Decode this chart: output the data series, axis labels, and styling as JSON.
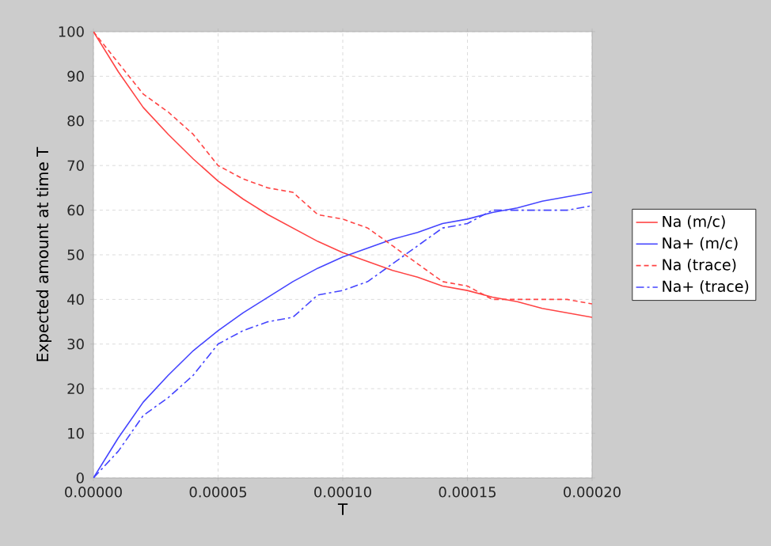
{
  "chart_data": {
    "type": "line",
    "xlabel": "T",
    "ylabel": "Expected amount at time T",
    "x": [
      0,
      1e-05,
      2e-05,
      3e-05,
      4e-05,
      5e-05,
      6e-05,
      7e-05,
      8e-05,
      9e-05,
      0.0001,
      0.00011,
      0.00012,
      0.00013,
      0.00014,
      0.00015,
      0.00016,
      0.00017,
      0.00018,
      0.00019,
      0.0002
    ],
    "series": [
      {
        "name": "Na (m/c)",
        "color": "#ff4444",
        "line_style": "solid",
        "values": [
          100,
          91,
          83,
          77,
          71.5,
          66.5,
          62.5,
          59,
          56,
          53,
          50.5,
          48.5,
          46.5,
          45,
          43,
          42,
          40.5,
          39.5,
          38,
          37,
          36
        ]
      },
      {
        "name": "Na+ (m/c)",
        "color": "#4444ff",
        "line_style": "solid",
        "values": [
          0,
          9,
          17,
          23,
          28.5,
          33,
          37,
          40.5,
          44,
          47,
          49.5,
          51.5,
          53.5,
          55,
          57,
          58,
          59.5,
          60.5,
          62,
          63,
          64
        ]
      },
      {
        "name": "Na (trace)",
        "color": "#ff4444",
        "line_style": "dashed",
        "values": [
          100,
          93,
          86,
          82,
          77,
          70,
          67,
          65,
          64,
          59,
          58,
          56,
          52,
          48,
          44,
          43,
          40,
          40,
          40,
          40,
          39
        ]
      },
      {
        "name": "Na+ (trace)",
        "color": "#4444ff",
        "line_style": "dashdot",
        "values": [
          0,
          6,
          14,
          18,
          23,
          30,
          33,
          35,
          36,
          41,
          42,
          44,
          48,
          52,
          56,
          57,
          60,
          60,
          60,
          60,
          61
        ]
      }
    ],
    "xlim": [
      0,
      0.0002
    ],
    "ylim": [
      0,
      100
    ],
    "xticks": [
      {
        "value": 0,
        "label": "0.00000"
      },
      {
        "value": 5e-05,
        "label": "0.00005"
      },
      {
        "value": 0.0001,
        "label": "0.00010"
      },
      {
        "value": 0.00015,
        "label": "0.00015"
      },
      {
        "value": 0.0002,
        "label": "0.00020"
      }
    ],
    "yticks": [
      0,
      10,
      20,
      30,
      40,
      50,
      60,
      70,
      80,
      90,
      100
    ],
    "grid": true,
    "legend": "right",
    "marker": "none"
  }
}
